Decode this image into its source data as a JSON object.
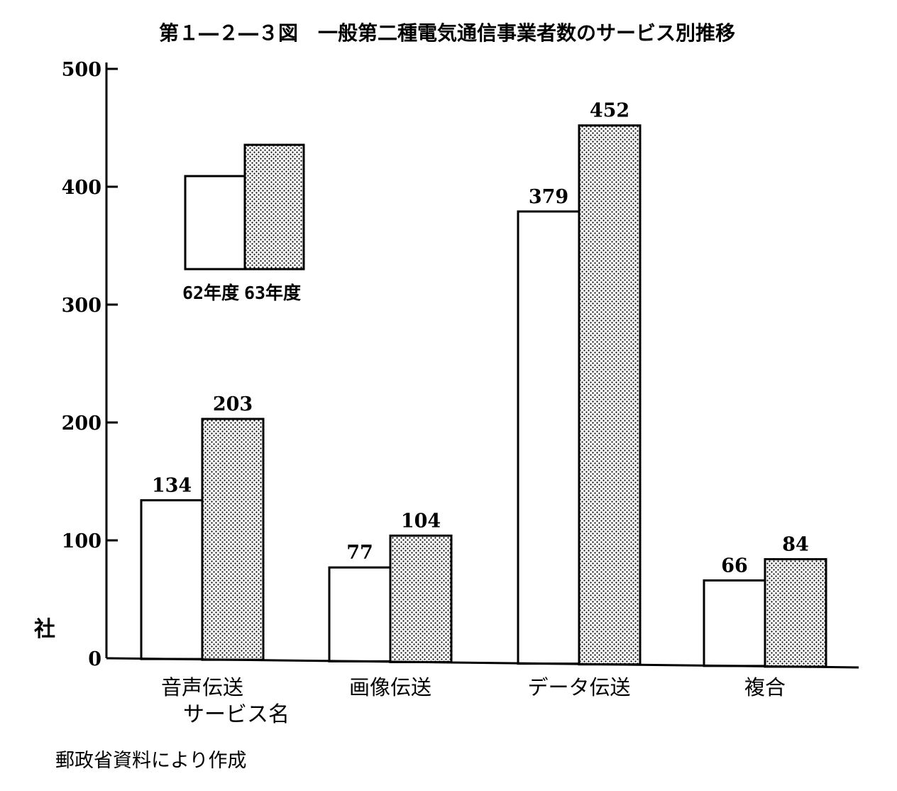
{
  "chart_data": {
    "type": "bar",
    "title": "第１―２―３図　一般第二種電気通信事業者数のサービス別推移",
    "xlabel": "サービス名",
    "ylabel": "社",
    "categories": [
      "音声伝送",
      "画像伝送",
      "データ伝送",
      "複合"
    ],
    "series": [
      {
        "name": "62年度",
        "values": [
          134,
          77,
          379,
          66
        ]
      },
      {
        "name": "63年度",
        "values": [
          203,
          104,
          452,
          84
        ]
      }
    ],
    "ylim": [
      0,
      500
    ],
    "yticks": [
      "0",
      "100",
      "200",
      "300",
      "400",
      "500"
    ],
    "grid": false,
    "legend_position": "top-left",
    "source": "郵政省資料により作成",
    "colors": {
      "series_1_fill": "#ffffff",
      "series_2_dots": "#000000",
      "stroke": "#000000"
    }
  }
}
